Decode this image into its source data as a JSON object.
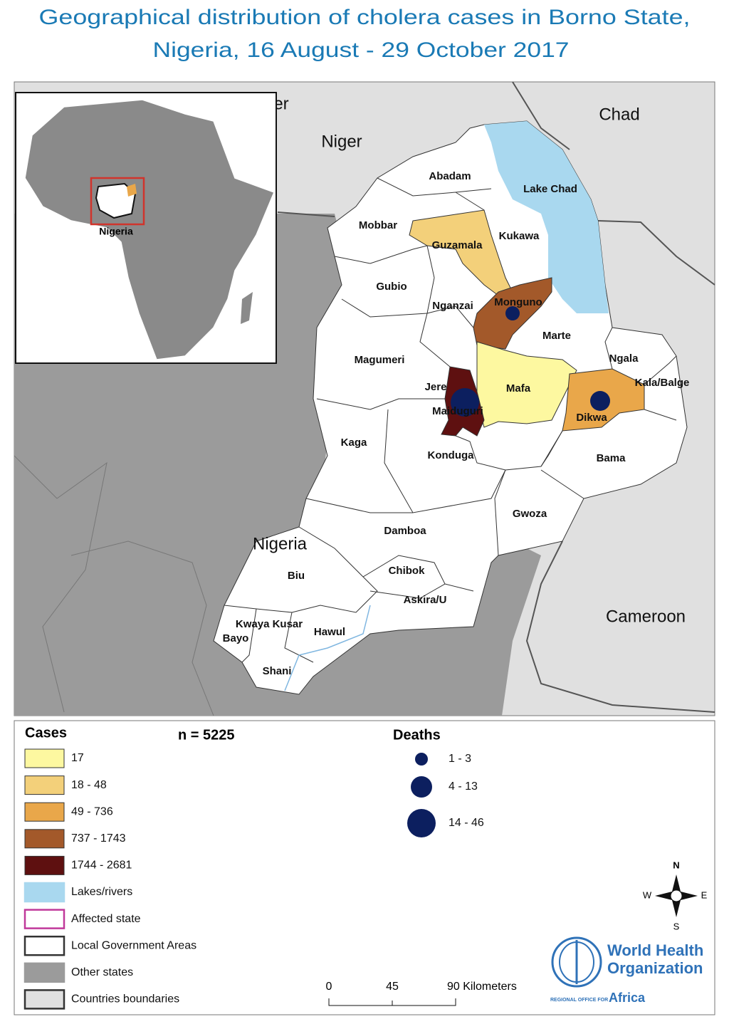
{
  "title": [
    "Geographical distribution of cholera  cases in Borno State,",
    "Nigeria, 16 August - 29 October 2017"
  ],
  "inset": {
    "label": "Nigeria"
  },
  "map": {
    "countries": [
      "er",
      "Niger",
      "Chad",
      "Nigeria",
      "Cameroon"
    ],
    "lake": "Lake Chad",
    "lgas": [
      "Abadam",
      "Mobbar",
      "Guzamala",
      "Kukawa",
      "Gubio",
      "Nganzai",
      "Monguno",
      "Marte",
      "Magumeri",
      "Ngala",
      "Kala/Balge",
      "Jere",
      "Mafa",
      "Maiduguri",
      "Dikwa",
      "Kaga",
      "Konduga",
      "Bama",
      "Gwoza",
      "Damboa",
      "Biu",
      "Chibok",
      "Askira/U",
      "Kwaya Kusar",
      "Hawul",
      "Bayo",
      "Shani"
    ]
  },
  "legend": {
    "cases_title": "Cases",
    "total": "n = 5225",
    "cases": [
      {
        "label": "17",
        "color": "#fdf8a0"
      },
      {
        "label": "18 - 48",
        "color": "#f3d07a"
      },
      {
        "label": "49 - 736",
        "color": "#e9a74a"
      },
      {
        "label": "737 - 1743",
        "color": "#a3592a"
      },
      {
        "label": "1744 - 2681",
        "color": "#5e1010"
      }
    ],
    "other": [
      {
        "label": "Lakes/rivers",
        "color": "#a9d8ef",
        "border": "#a9d8ef"
      },
      {
        "label": "Affected state",
        "color": "#ffffff",
        "border": "#c0399a"
      },
      {
        "label": "Local Government Areas",
        "color": "#ffffff",
        "border": "#333333"
      },
      {
        "label": "Other states",
        "color": "#9b9b9b",
        "border": "#9b9b9b"
      },
      {
        "label": "Countries boundaries",
        "color": "#e0e0e0",
        "border": "#333333"
      }
    ],
    "deaths_title": "Deaths",
    "deaths": [
      "1 - 3",
      "4 - 13",
      "14 - 46"
    ],
    "deaths_color": "#0c1f5f"
  },
  "scale": [
    "0",
    "45",
    "90 Kilometers"
  ],
  "compass": [
    "N",
    "E",
    "S",
    "W"
  ],
  "logo": [
    "World Health",
    "Organization",
    "REGIONAL OFFICE FOR",
    "Africa"
  ]
}
